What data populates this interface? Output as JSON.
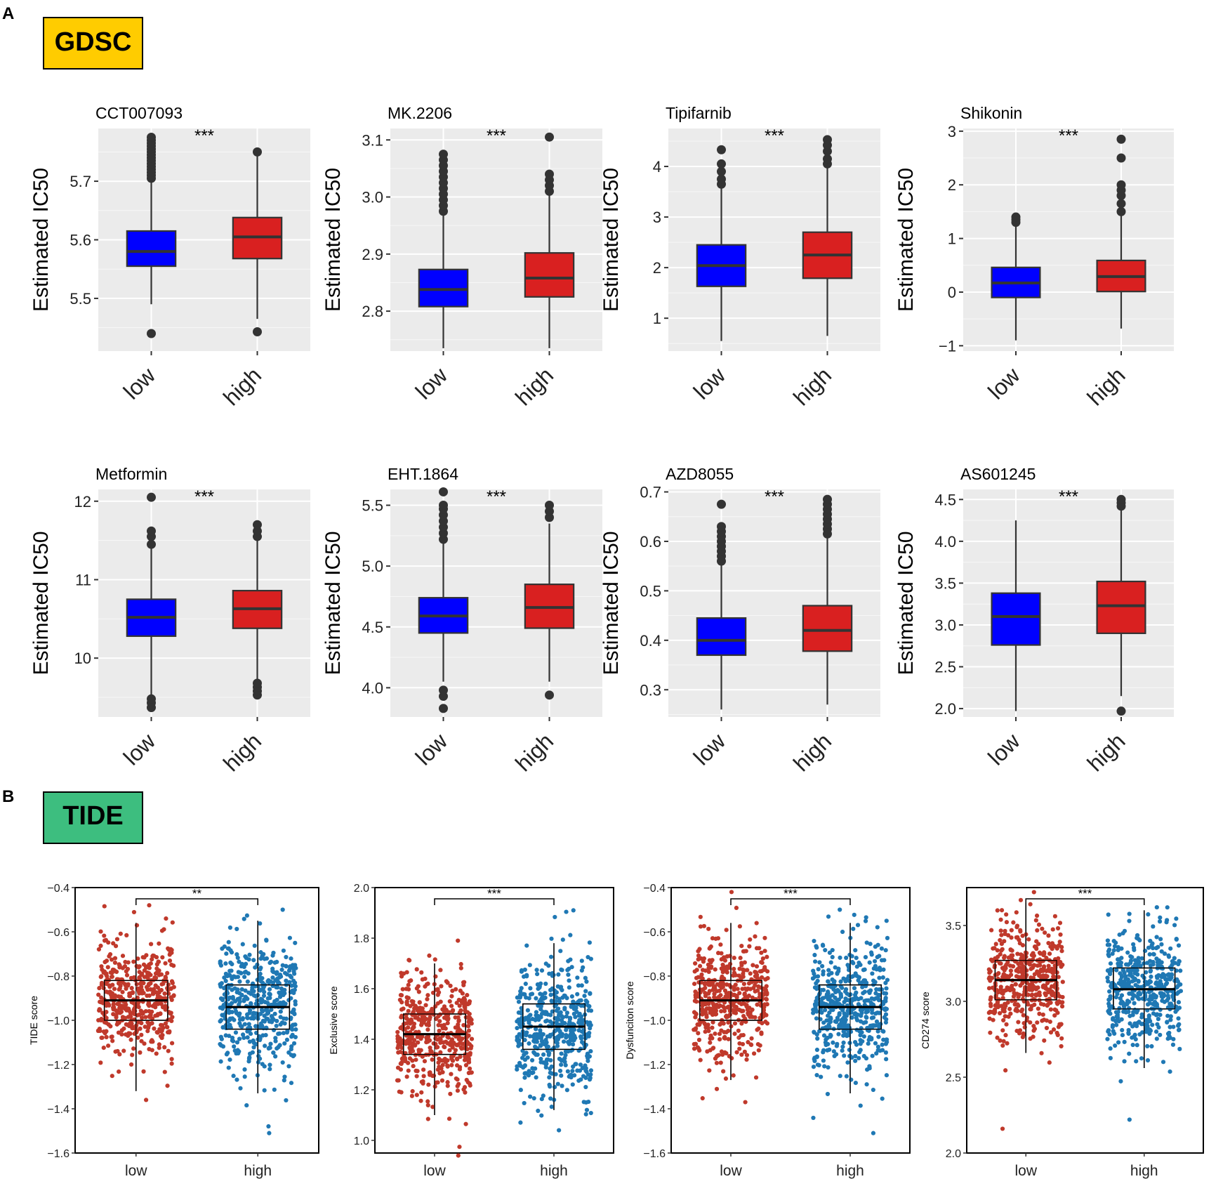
{
  "labels": {
    "panel_a": "A",
    "panel_b": "B",
    "gdsc_tag": "GDSC",
    "tide_tag": "TIDE"
  },
  "colors": {
    "gdsc_tag_fill": "#FFCC00",
    "tide_tag_fill": "#3DBE7F",
    "gdsc_low": "#0000FF",
    "gdsc_high": "#D92020",
    "tide_low": "#C0392B",
    "tide_high": "#1F78B4",
    "panel_bg": "#EBEBEB"
  },
  "chart_data": [
    {
      "type": "box",
      "group": "GDSC",
      "title": "CCT007093",
      "ylabel": "Estimated IC50",
      "categories": [
        "low",
        "high"
      ],
      "significance": "***",
      "ylim": [
        5.41,
        5.79
      ],
      "yticks": [
        5.5,
        5.6,
        5.7
      ],
      "yticklabels": [
        "5.5",
        "5.6",
        "5.7"
      ],
      "boxes": [
        {
          "category": "low",
          "whisker_low": 5.49,
          "q1": 5.555,
          "median": 5.58,
          "q3": 5.615,
          "whisker_high": 5.7,
          "outliers": [
            5.44,
            5.705,
            5.71,
            5.715,
            5.72,
            5.725,
            5.73,
            5.735,
            5.74,
            5.745,
            5.75,
            5.755,
            5.76,
            5.765,
            5.77,
            5.775
          ]
        },
        {
          "category": "high",
          "whisker_low": 5.465,
          "q1": 5.568,
          "median": 5.605,
          "q3": 5.638,
          "whisker_high": 5.745,
          "outliers": [
            5.443,
            5.75
          ]
        }
      ]
    },
    {
      "type": "box",
      "group": "GDSC",
      "title": "MK.2206",
      "ylabel": "Estimated IC50",
      "categories": [
        "low",
        "high"
      ],
      "significance": "***",
      "ylim": [
        2.73,
        3.12
      ],
      "yticks": [
        2.8,
        2.9,
        3.0,
        3.1
      ],
      "yticklabels": [
        "2.8",
        "2.9",
        "3.0",
        "3.1"
      ],
      "boxes": [
        {
          "category": "low",
          "whisker_low": 2.735,
          "q1": 2.808,
          "median": 2.838,
          "q3": 2.873,
          "whisker_high": 2.97,
          "outliers": [
            2.975,
            2.985,
            2.995,
            3.005,
            3.015,
            3.025,
            3.035,
            3.045,
            3.055,
            3.065,
            3.075
          ]
        },
        {
          "category": "high",
          "whisker_low": 2.735,
          "q1": 2.825,
          "median": 2.858,
          "q3": 2.902,
          "whisker_high": 3.005,
          "outliers": [
            3.01,
            3.02,
            3.03,
            3.04,
            3.105
          ]
        }
      ]
    },
    {
      "type": "box",
      "group": "GDSC",
      "title": "Tipifarnib",
      "ylabel": "Estimated IC50",
      "categories": [
        "low",
        "high"
      ],
      "significance": "***",
      "ylim": [
        0.35,
        4.75
      ],
      "yticks": [
        1,
        2,
        3,
        4
      ],
      "yticklabels": [
        "1",
        "2",
        "3",
        "4"
      ],
      "boxes": [
        {
          "category": "low",
          "whisker_low": 0.55,
          "q1": 1.63,
          "median": 2.04,
          "q3": 2.45,
          "whisker_high": 3.6,
          "outliers": [
            3.65,
            3.75,
            3.9,
            4.05,
            4.33
          ]
        },
        {
          "category": "high",
          "whisker_low": 0.65,
          "q1": 1.79,
          "median": 2.25,
          "q3": 2.7,
          "whisker_high": 4.0,
          "outliers": [
            4.05,
            4.15,
            4.3,
            4.42,
            4.53
          ]
        }
      ]
    },
    {
      "type": "box",
      "group": "GDSC",
      "title": "Shikonin",
      "ylabel": "Estimated IC50",
      "categories": [
        "low",
        "high"
      ],
      "significance": "***",
      "ylim": [
        -1.1,
        3.05
      ],
      "yticks": [
        -1,
        0,
        1,
        2,
        3
      ],
      "yticklabels": [
        "−1",
        "0",
        "1",
        "2",
        "3"
      ],
      "boxes": [
        {
          "category": "low",
          "whisker_low": -0.9,
          "q1": -0.1,
          "median": 0.17,
          "q3": 0.46,
          "whisker_high": 1.25,
          "outliers": [
            1.3,
            1.35,
            1.4
          ]
        },
        {
          "category": "high",
          "whisker_low": -0.68,
          "q1": 0.01,
          "median": 0.29,
          "q3": 0.59,
          "whisker_high": 1.45,
          "outliers": [
            1.5,
            1.65,
            1.8,
            1.9,
            2.0,
            2.5,
            2.85
          ]
        }
      ]
    },
    {
      "type": "box",
      "group": "GDSC",
      "title": "Metformin",
      "ylabel": "Estimated IC50",
      "categories": [
        "low",
        "high"
      ],
      "significance": "***",
      "ylim": [
        9.25,
        12.15
      ],
      "yticks": [
        10,
        11,
        12
      ],
      "yticklabels": [
        "10",
        "11",
        "12"
      ],
      "boxes": [
        {
          "category": "low",
          "whisker_low": 9.5,
          "q1": 10.28,
          "median": 10.52,
          "q3": 10.75,
          "whisker_high": 11.5,
          "outliers": [
            9.37,
            9.43,
            9.48,
            11.45,
            11.55,
            11.62,
            12.05
          ]
        },
        {
          "category": "high",
          "whisker_low": 9.7,
          "q1": 10.38,
          "median": 10.63,
          "q3": 10.86,
          "whisker_high": 11.5,
          "outliers": [
            9.53,
            9.58,
            9.63,
            9.68,
            11.55,
            11.62,
            11.7
          ]
        }
      ]
    },
    {
      "type": "box",
      "group": "GDSC",
      "title": "EHT.1864",
      "ylabel": "Estimated IC50",
      "categories": [
        "low",
        "high"
      ],
      "significance": "***",
      "ylim": [
        3.76,
        5.63
      ],
      "yticks": [
        4.0,
        4.5,
        5.0,
        5.5
      ],
      "yticklabels": [
        "4.0",
        "4.5",
        "5.0",
        "5.5"
      ],
      "boxes": [
        {
          "category": "low",
          "whisker_low": 4.05,
          "q1": 4.45,
          "median": 4.59,
          "q3": 4.74,
          "whisker_high": 5.2,
          "outliers": [
            3.83,
            3.93,
            3.98,
            5.22,
            5.27,
            5.32,
            5.37,
            5.42,
            5.47,
            5.5,
            5.61
          ]
        },
        {
          "category": "high",
          "whisker_low": 4.05,
          "q1": 4.49,
          "median": 4.66,
          "q3": 4.85,
          "whisker_high": 5.35,
          "outliers": [
            3.94,
            5.4,
            5.45,
            5.5
          ]
        }
      ]
    },
    {
      "type": "box",
      "group": "GDSC",
      "title": "AZD8055",
      "ylabel": "Estimated IC50",
      "categories": [
        "low",
        "high"
      ],
      "significance": "***",
      "ylim": [
        0.245,
        0.705
      ],
      "yticks": [
        0.3,
        0.4,
        0.5,
        0.6,
        0.7
      ],
      "yticklabels": [
        "0.3",
        "0.4",
        "0.5",
        "0.6",
        "0.7"
      ],
      "boxes": [
        {
          "category": "low",
          "whisker_low": 0.26,
          "q1": 0.37,
          "median": 0.4,
          "q3": 0.445,
          "whisker_high": 0.555,
          "outliers": [
            0.56,
            0.57,
            0.58,
            0.59,
            0.6,
            0.61,
            0.62,
            0.63,
            0.675
          ]
        },
        {
          "category": "high",
          "whisker_low": 0.27,
          "q1": 0.378,
          "median": 0.42,
          "q3": 0.47,
          "whisker_high": 0.61,
          "outliers": [
            0.615,
            0.625,
            0.635,
            0.645,
            0.655,
            0.665,
            0.675,
            0.685
          ]
        }
      ]
    },
    {
      "type": "box",
      "group": "GDSC",
      "title": "AS601245",
      "ylabel": "Estimated IC50",
      "categories": [
        "low",
        "high"
      ],
      "significance": "***",
      "ylim": [
        1.9,
        4.62
      ],
      "yticks": [
        2.0,
        2.5,
        3.0,
        3.5,
        4.0,
        4.5
      ],
      "yticklabels": [
        "2.0",
        "2.5",
        "3.0",
        "3.5",
        "4.0",
        "4.5"
      ],
      "boxes": [
        {
          "category": "low",
          "whisker_low": 1.97,
          "q1": 2.76,
          "median": 3.1,
          "q3": 3.38,
          "whisker_high": 4.25,
          "outliers": []
        },
        {
          "category": "high",
          "whisker_low": 2.15,
          "q1": 2.9,
          "median": 3.23,
          "q3": 3.52,
          "whisker_high": 4.4,
          "outliers": [
            1.97,
            4.42,
            4.46,
            4.5
          ]
        }
      ]
    },
    {
      "type": "box_jitter",
      "group": "TIDE",
      "title": "",
      "ylabel": "TIDE score",
      "categories": [
        "low",
        "high"
      ],
      "significance": "**",
      "ylim": [
        -1.6,
        -0.4
      ],
      "yticks": [
        -1.6,
        -1.4,
        -1.2,
        -1.0,
        -0.8,
        -0.6,
        -0.4
      ],
      "yticklabels": [
        "−1.6",
        "−1.4",
        "−1.2",
        "−1.0",
        "−0.8",
        "−0.6",
        "−0.4"
      ],
      "boxes": [
        {
          "category": "low",
          "whisker_low": -1.32,
          "q1": -1.0,
          "median": -0.91,
          "q3": -0.82,
          "whisker_high": -0.56,
          "range": [
            -1.36,
            -0.48
          ],
          "n_points": 480
        },
        {
          "category": "high",
          "whisker_low": -1.33,
          "q1": -1.04,
          "median": -0.94,
          "q3": -0.84,
          "whisker_high": -0.55,
          "range": [
            -1.51,
            -0.5
          ],
          "n_points": 480
        }
      ]
    },
    {
      "type": "box_jitter",
      "group": "TIDE",
      "title": "",
      "ylabel": "Exclusive score",
      "categories": [
        "low",
        "high"
      ],
      "significance": "***",
      "ylim": [
        0.95,
        2.0
      ],
      "yticks": [
        1.0,
        1.2,
        1.4,
        1.6,
        1.8,
        2.0
      ],
      "yticklabels": [
        "1.0",
        "1.2",
        "1.4",
        "1.6",
        "1.8",
        "2.0"
      ],
      "boxes": [
        {
          "category": "low",
          "whisker_low": 1.1,
          "q1": 1.34,
          "median": 1.42,
          "q3": 1.5,
          "whisker_high": 1.7,
          "range": [
            0.94,
            1.79
          ],
          "n_points": 480
        },
        {
          "category": "high",
          "whisker_low": 1.12,
          "q1": 1.36,
          "median": 1.45,
          "q3": 1.54,
          "whisker_high": 1.78,
          "range": [
            1.04,
            1.91
          ],
          "n_points": 480
        }
      ]
    },
    {
      "type": "box_jitter",
      "group": "TIDE",
      "title": "",
      "ylabel": "Dysfunciton score",
      "categories": [
        "low",
        "high"
      ],
      "significance": "***",
      "ylim": [
        -1.6,
        -0.4
      ],
      "yticks": [
        -1.6,
        -1.4,
        -1.2,
        -1.0,
        -0.8,
        -0.6,
        -0.4
      ],
      "yticklabels": [
        "−1.6",
        "−1.4",
        "−1.2",
        "−1.0",
        "−0.8",
        "−0.6",
        "−0.4"
      ],
      "boxes": [
        {
          "category": "low",
          "whisker_low": -1.27,
          "q1": -1.0,
          "median": -0.91,
          "q3": -0.82,
          "whisker_high": -0.56,
          "range": [
            -1.37,
            -0.42
          ],
          "n_points": 480
        },
        {
          "category": "high",
          "whisker_low": -1.33,
          "q1": -1.04,
          "median": -0.94,
          "q3": -0.84,
          "whisker_high": -0.56,
          "range": [
            -1.51,
            -0.5
          ],
          "n_points": 480
        }
      ]
    },
    {
      "type": "box_jitter",
      "group": "TIDE",
      "title": "",
      "ylabel": "CD274 score",
      "categories": [
        "low",
        "high"
      ],
      "significance": "***",
      "ylim": [
        2.0,
        3.75
      ],
      "yticks": [
        2.0,
        2.5,
        3.0,
        3.5
      ],
      "yticklabels": [
        "2.0",
        "2.5",
        "3.0",
        "3.5"
      ],
      "boxes": [
        {
          "category": "low",
          "whisker_low": 2.66,
          "q1": 3.01,
          "median": 3.14,
          "q3": 3.27,
          "whisker_high": 3.65,
          "range": [
            2.16,
            3.72
          ],
          "n_points": 480
        },
        {
          "category": "high",
          "whisker_low": 2.56,
          "q1": 2.95,
          "median": 3.08,
          "q3": 3.22,
          "whisker_high": 3.6,
          "range": [
            2.22,
            3.62
          ],
          "n_points": 480
        }
      ]
    }
  ]
}
